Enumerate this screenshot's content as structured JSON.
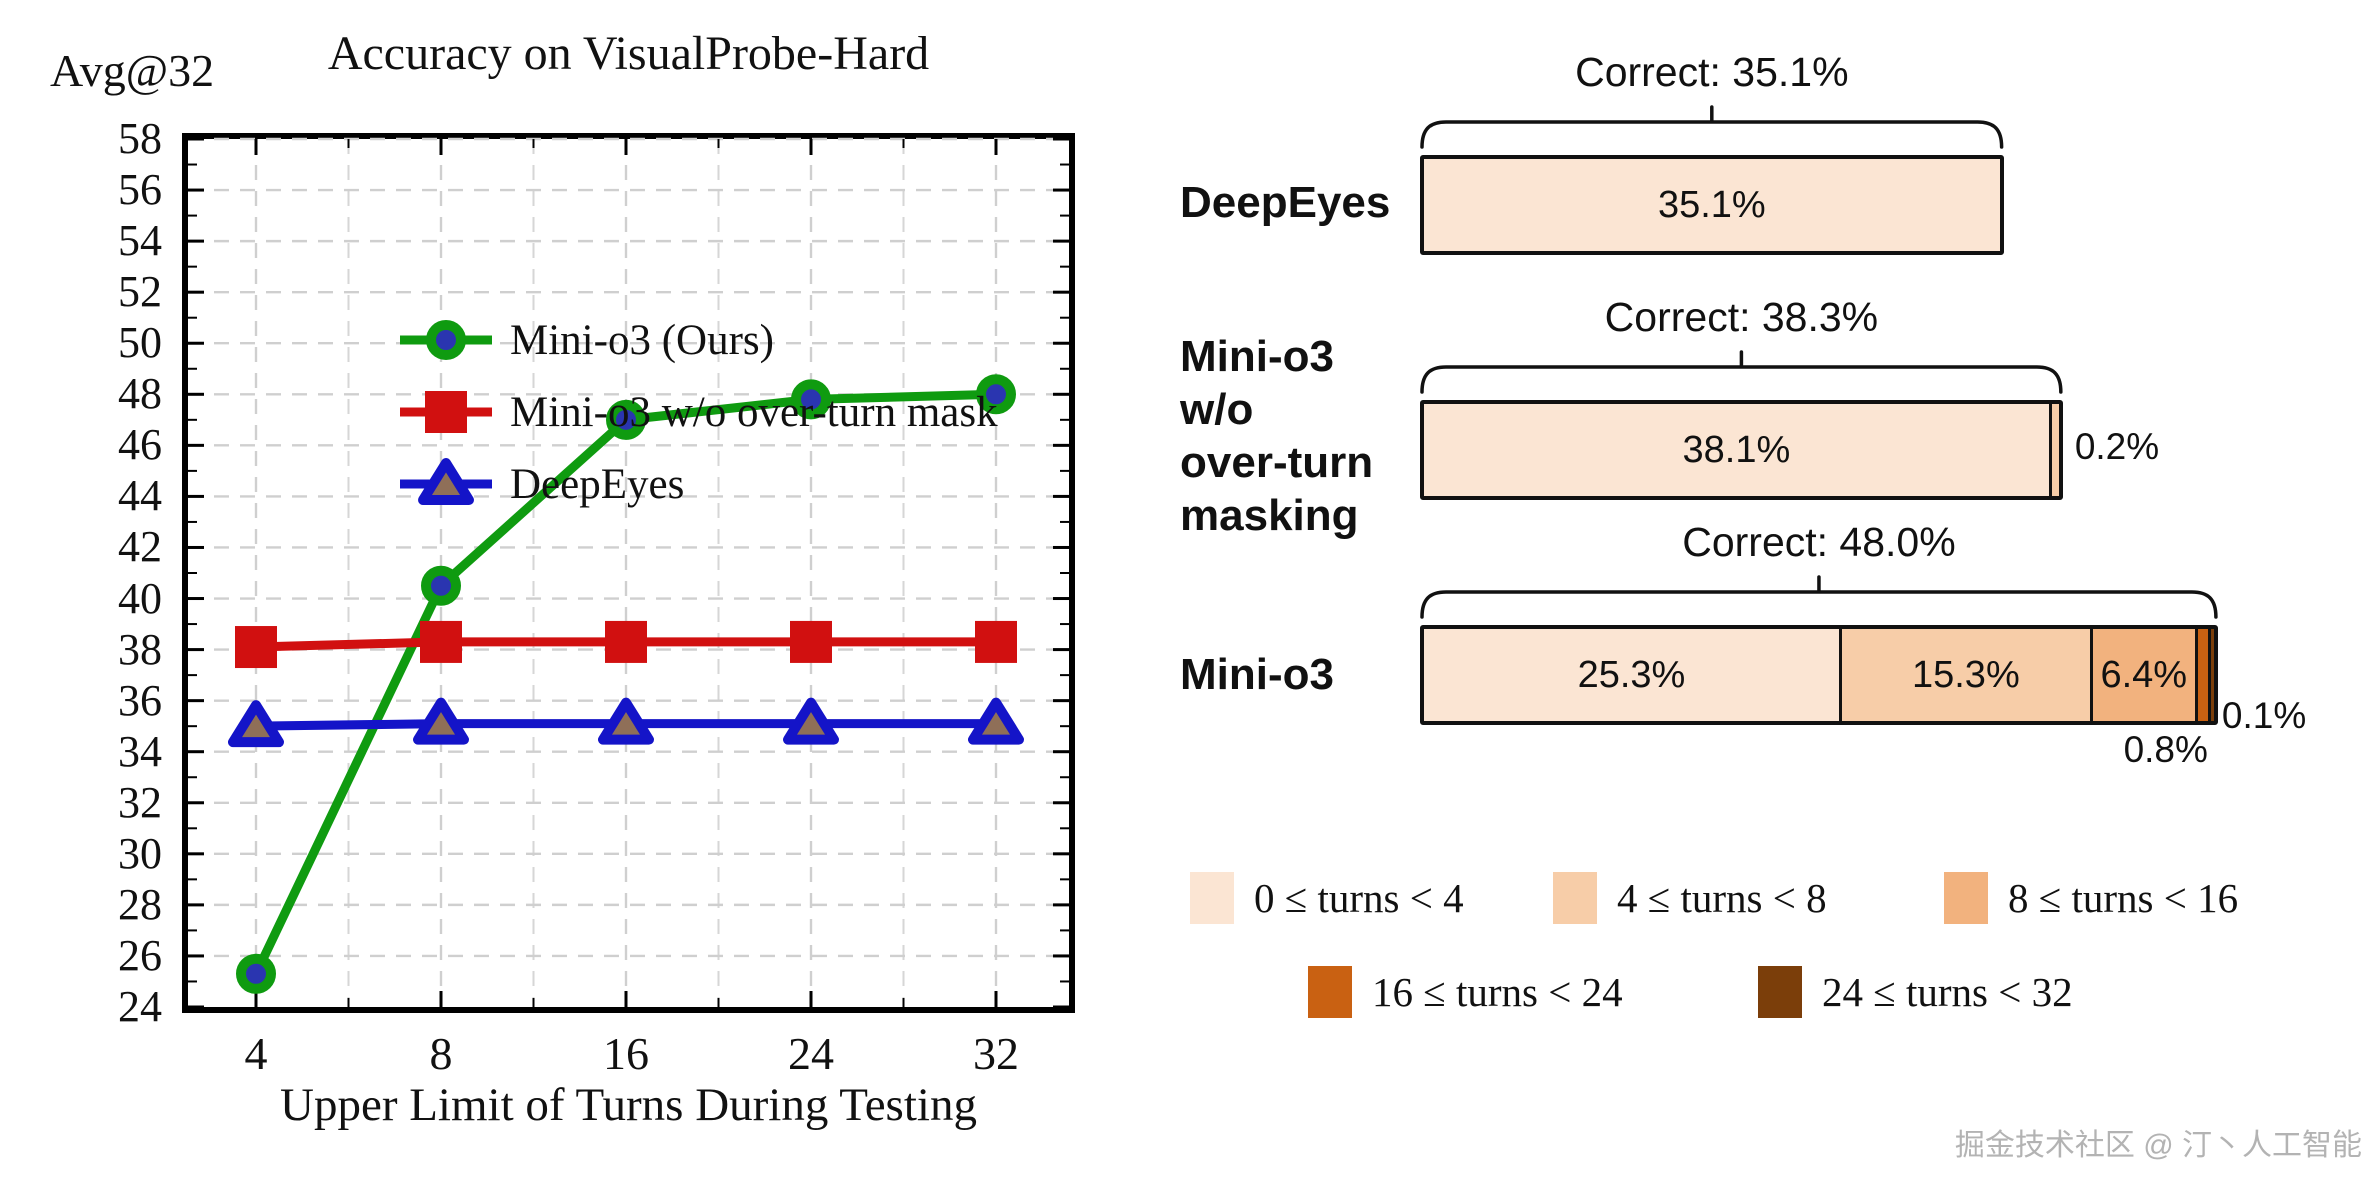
{
  "watermark": "掘金技术社区 @ 汀丶人工智能",
  "chart_data": [
    {
      "type": "line",
      "title": "Accuracy on VisualProbe-Hard",
      "ylabel": "Avg@32",
      "xlabel": "Upper Limit of Turns During Testing",
      "x_categories": [
        "4",
        "8",
        "16",
        "24",
        "32"
      ],
      "ylim": [
        24,
        58
      ],
      "ytick_step": 2,
      "grid": true,
      "legend_position": "upper left",
      "series": [
        {
          "name": "Mini-o3 (Ours)",
          "color": "#0f9b10",
          "marker": "circle",
          "marker_fill": "#2a35b0",
          "values": [
            25.3,
            40.5,
            47.0,
            47.8,
            48.0
          ]
        },
        {
          "name": "Mini-o3 w/o over-turn mask",
          "color": "#d11010",
          "marker": "square",
          "marker_fill": "#d11010",
          "values": [
            38.1,
            38.3,
            38.3,
            38.3,
            38.3
          ]
        },
        {
          "name": "DeepEyes",
          "color": "#1414c8",
          "marker": "triangle",
          "marker_fill": "#8f6f58",
          "values": [
            35.0,
            35.1,
            35.1,
            35.1,
            35.1
          ]
        }
      ]
    },
    {
      "type": "stacked_bar_horizontal",
      "unit": "%",
      "bucket_colors": [
        "#fbe5d3",
        "#f7cda8",
        "#f2b27e",
        "#c96112",
        "#7b3e0a"
      ],
      "bucket_legend": [
        "0 ≤ turns < 4",
        "4 ≤ turns < 8",
        "8 ≤ turns < 16",
        "16 ≤ turns < 24",
        "24 ≤ turns < 32"
      ],
      "rows": [
        {
          "label_lines": [
            "DeepEyes"
          ],
          "correct_label": "Correct: 35.1%",
          "total": 35.1,
          "segments": [
            {
              "value": 35.1,
              "label": "35.1%",
              "bucket": 0,
              "outside": null
            }
          ]
        },
        {
          "label_lines": [
            "Mini-o3",
            "w/o",
            "over-turn",
            "masking"
          ],
          "correct_label": "Correct: 38.3%",
          "total": 38.3,
          "segments": [
            {
              "value": 38.1,
              "label": "38.1%",
              "bucket": 0,
              "outside": null
            },
            {
              "value": 0.2,
              "label": "0.2%",
              "bucket": 1,
              "outside": "right"
            }
          ]
        },
        {
          "label_lines": [
            "Mini-o3"
          ],
          "correct_label": "Correct: 48.0%",
          "total": 48.0,
          "segments": [
            {
              "value": 25.3,
              "label": "25.3%",
              "bucket": 0,
              "outside": null
            },
            {
              "value": 15.3,
              "label": "15.3%",
              "bucket": 1,
              "outside": null
            },
            {
              "value": 6.4,
              "label": "6.4%",
              "bucket": 2,
              "outside": null
            },
            {
              "value": 0.8,
              "label": "0.8%",
              "bucket": 3,
              "outside": "below"
            },
            {
              "value": 0.1,
              "label": "0.1%",
              "bucket": 4,
              "outside": "corner"
            }
          ]
        }
      ]
    }
  ]
}
